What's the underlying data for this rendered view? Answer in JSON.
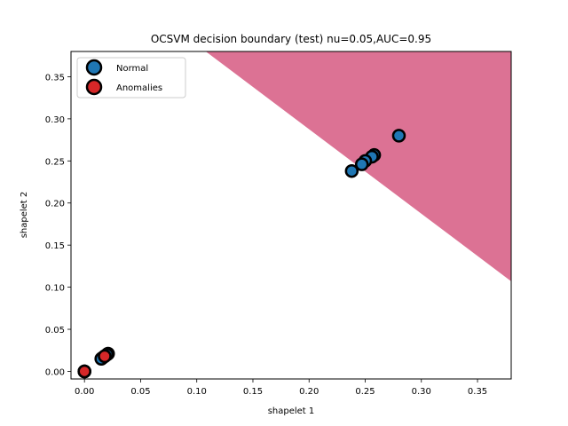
{
  "chart_data": {
    "type": "scatter",
    "title": "OCSVM decision boundary (test) nu=0.05,AUC=0.95",
    "xlabel": "shapelet 1",
    "ylabel": "shapelet 2",
    "xlim": [
      -0.012,
      0.38
    ],
    "ylim": [
      -0.009,
      0.38
    ],
    "xticks": [
      "0.00",
      "0.05",
      "0.10",
      "0.15",
      "0.20",
      "0.25",
      "0.30",
      "0.35"
    ],
    "yticks": [
      "0.00",
      "0.05",
      "0.10",
      "0.15",
      "0.20",
      "0.25",
      "0.30",
      "0.35"
    ],
    "grid": false,
    "legend_position": "top-left",
    "decision_region": {
      "color": "#dc7294",
      "boundary_line": [
        [
          0.108,
          0.38
        ],
        [
          0.38,
          0.107
        ]
      ],
      "side": "upper-right"
    },
    "series": [
      {
        "name": "Normal",
        "color": "#1f77b4",
        "points": [
          [
            0.28,
            0.28
          ],
          [
            0.258,
            0.257
          ],
          [
            0.256,
            0.255
          ],
          [
            0.25,
            0.25
          ],
          [
            0.247,
            0.246
          ],
          [
            0.238,
            0.238
          ],
          [
            0.021,
            0.021
          ],
          [
            0.02,
            0.02
          ],
          [
            0.018,
            0.018
          ],
          [
            0.016,
            0.016
          ],
          [
            0.015,
            0.015
          ],
          [
            0.0,
            0.0
          ],
          [
            0.0,
            0.0
          ]
        ]
      },
      {
        "name": "Anomalies",
        "color": "#d62728",
        "points": [
          [
            0.0,
            0.0
          ],
          [
            0.018,
            0.018
          ]
        ]
      }
    ]
  }
}
